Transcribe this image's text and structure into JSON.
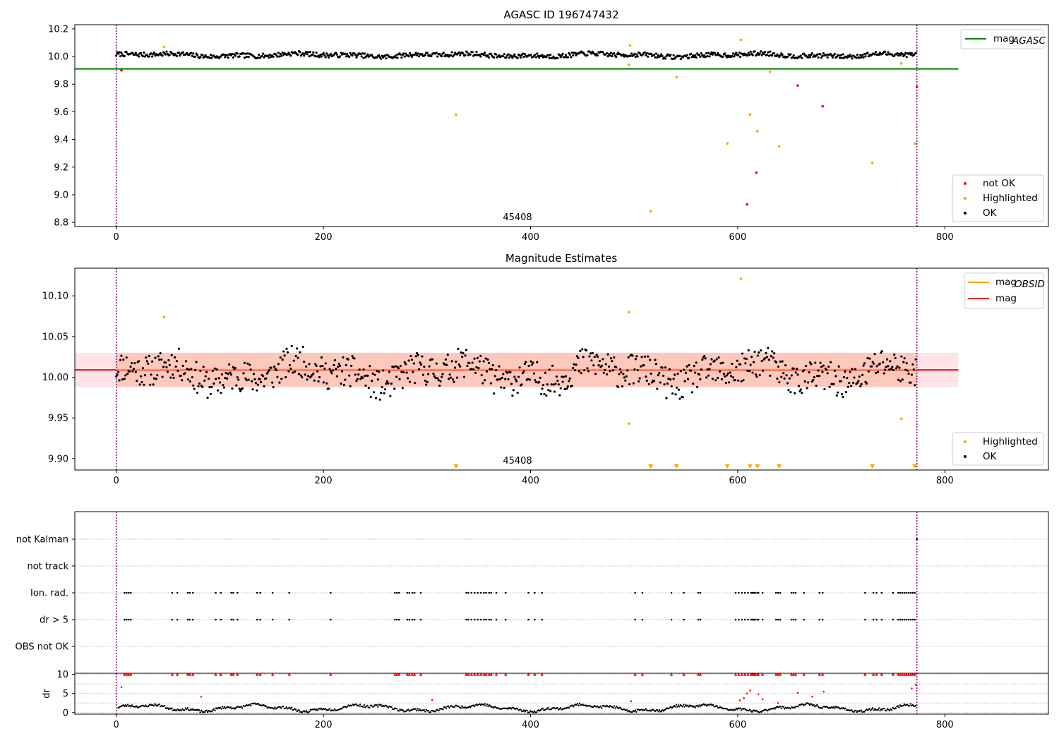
{
  "chart_data": [
    {
      "type": "scatter",
      "title": "AGASC ID 196747432",
      "xlabel": "",
      "ylabel": "",
      "xlim": [
        -40,
        900
      ],
      "ylim": [
        8.77,
        10.23
      ],
      "xticks": [
        0,
        200,
        400,
        600,
        800
      ],
      "yticks": [
        8.8,
        9.0,
        9.2,
        9.4,
        9.6,
        9.8,
        10.0,
        10.2
      ],
      "ytick_labels": [
        "8.8",
        "9.0",
        "9.2",
        "9.4",
        "9.6",
        "9.8",
        "10.0",
        "10.2"
      ],
      "vlines": [
        0,
        773
      ],
      "hline": {
        "name": "mag",
        "subscript": "AGASC",
        "y": 9.91,
        "x_range": [
          -40,
          813
        ],
        "color": "#008000"
      },
      "annotation": {
        "text": "45408",
        "x": 386
      },
      "ok_noise": {
        "mean": 10.01,
        "amplitude": 0.03,
        "n": 780
      },
      "series": [
        {
          "name": "not OK",
          "color": "#ff0000",
          "points": [
            [
              5,
              9.9
            ],
            [
              658,
              9.79
            ],
            [
              682,
              9.64
            ],
            [
              618,
              9.16
            ],
            [
              609,
              8.93
            ],
            [
              773,
              9.78
            ]
          ]
        },
        {
          "name": "Highlighted",
          "color": "#ffa500",
          "points": [
            [
              46,
              10.07
            ],
            [
              328,
              9.58
            ],
            [
              496,
              10.08
            ],
            [
              495,
              9.94
            ],
            [
              541,
              9.85
            ],
            [
              516,
              8.88
            ],
            [
              590,
              9.37
            ],
            [
              603,
              10.12
            ],
            [
              612,
              9.58
            ],
            [
              619,
              9.46
            ],
            [
              631,
              9.89
            ],
            [
              640,
              9.35
            ],
            [
              730,
              9.23
            ],
            [
              758,
              9.95
            ],
            [
              771,
              9.37
            ]
          ]
        },
        {
          "name": "OK",
          "color": "#000000",
          "points": []
        }
      ],
      "legends": [
        {
          "position": "upper right",
          "items": [
            "mag"
          ]
        },
        {
          "position": "lower right",
          "items": [
            "not OK",
            "Highlighted",
            "OK"
          ]
        }
      ]
    },
    {
      "type": "scatter",
      "title": "Magnitude Estimates",
      "xlabel": "",
      "ylabel": "",
      "xlim": [
        -40,
        900
      ],
      "ylim": [
        9.886,
        10.134
      ],
      "xticks": [
        0,
        200,
        400,
        600,
        800
      ],
      "yticks": [
        9.9,
        9.95,
        10.0,
        10.05,
        10.1
      ],
      "ytick_labels": [
        "9.90",
        "9.95",
        "10.00",
        "10.05",
        "10.10"
      ],
      "vlines": [
        0,
        773
      ],
      "mag_line": {
        "name": "mag",
        "y": 10.009,
        "color": "#ff0000"
      },
      "mag_band": {
        "low": 9.988,
        "high": 10.03
      },
      "mag_obsid": {
        "name": "mag",
        "subscript": "OBSID",
        "color": "#ffa500"
      },
      "annotation": {
        "text": "45408",
        "x": 386
      },
      "ok_noise": {
        "mean": 10.005,
        "amplitude": 0.035,
        "n": 780
      },
      "series": [
        {
          "name": "Highlighted",
          "color": "#ffa500",
          "points": [
            [
              46,
              10.074
            ],
            [
              495,
              10.08
            ],
            [
              495,
              9.943
            ],
            [
              603,
              10.121
            ],
            [
              758,
              9.949
            ]
          ]
        },
        {
          "name": "OK",
          "color": "#000000",
          "points": []
        }
      ],
      "below_range_markers": [
        328,
        516,
        541,
        590,
        612,
        619,
        640,
        730,
        771
      ],
      "legends": [
        {
          "position": "upper right",
          "items": [
            "mag OBSID",
            "mag"
          ]
        },
        {
          "position": "lower right",
          "items": [
            "Highlighted",
            "OK"
          ]
        }
      ]
    },
    {
      "type": "scatter",
      "title": "",
      "xlabel": "",
      "ylabel": "",
      "xlim": [
        -40,
        900
      ],
      "categories": [
        "not Kalman",
        "not track",
        "Ion. rad.",
        "dr > 5",
        "OBS not OK"
      ],
      "vlines": [
        0,
        773
      ],
      "flag_times": [
        8,
        10,
        12,
        14,
        54,
        59,
        69,
        71,
        74,
        96,
        101,
        111,
        113,
        117,
        136,
        139,
        151,
        167,
        207,
        269,
        271,
        273,
        281,
        283,
        286,
        288,
        294,
        338,
        340,
        343,
        346,
        349,
        352,
        355,
        357,
        360,
        362,
        367,
        376,
        398,
        404,
        411,
        501,
        508,
        536,
        548,
        562,
        564,
        598,
        601,
        604,
        607,
        610,
        613,
        614,
        615,
        616,
        617,
        619,
        620,
        624,
        637,
        639,
        641,
        652,
        654,
        656,
        664,
        679,
        682,
        723,
        731,
        734,
        739,
        750,
        755,
        757,
        759,
        761,
        763,
        765,
        767,
        769,
        771
      ],
      "not_kalman_times": [
        773
      ]
    },
    {
      "type": "scatter",
      "title": "",
      "xlabel": "",
      "ylabel": "dr",
      "xlim": [
        -40,
        900
      ],
      "ylim": [
        -0.4,
        10.3
      ],
      "xticks": [
        0,
        200,
        400,
        600,
        800
      ],
      "yticks": [
        0,
        5,
        10
      ],
      "ytick_labels": [
        "0",
        "5",
        "10"
      ],
      "vlines": [
        0,
        773
      ],
      "dr_cap": 10,
      "dr_cap_color": "#ff0000",
      "dr_spikes": [
        [
          5,
          6.7
        ],
        [
          82,
          4.2
        ],
        [
          305,
          3.3
        ],
        [
          497,
          3.0
        ],
        [
          602,
          3.2
        ],
        [
          606,
          3.8
        ],
        [
          609,
          5.0
        ],
        [
          612,
          5.8
        ],
        [
          620,
          4.8
        ],
        [
          624,
          3.5
        ],
        [
          639,
          2.5
        ],
        [
          658,
          5.2
        ],
        [
          672,
          4.2
        ],
        [
          683,
          5.5
        ],
        [
          768,
          6.3
        ],
        [
          772,
          7.3
        ]
      ]
    }
  ]
}
